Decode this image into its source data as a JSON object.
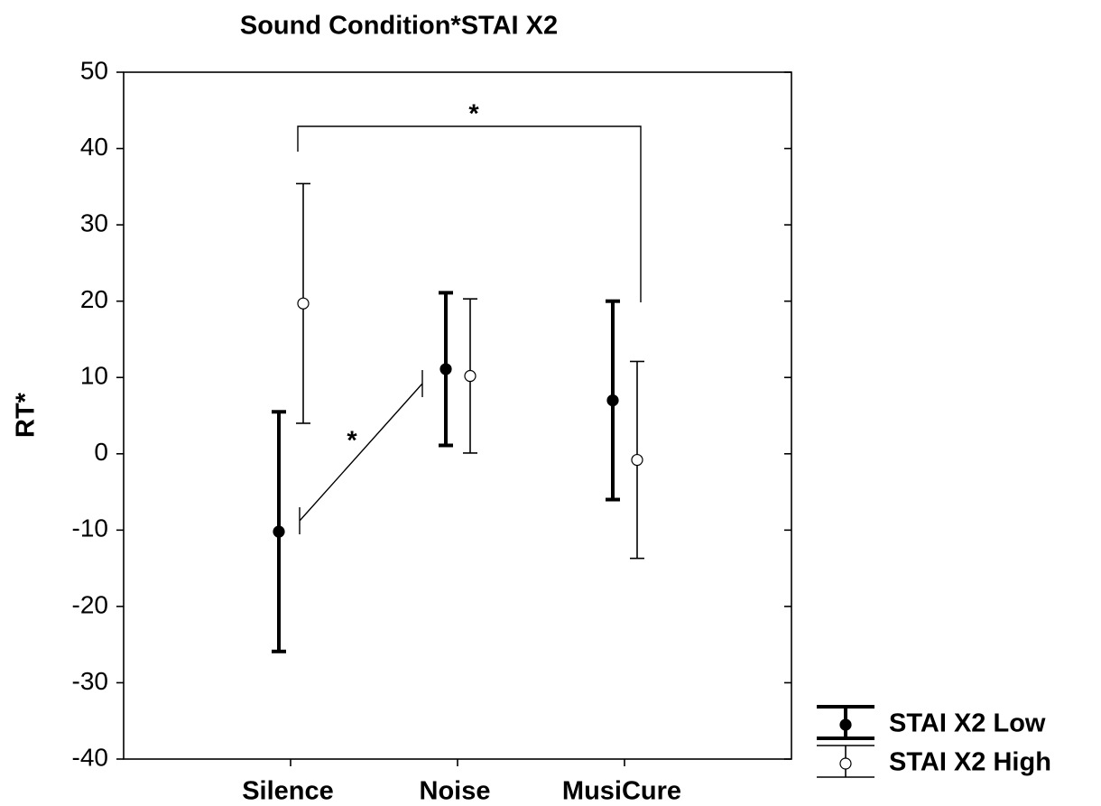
{
  "chart_data": {
    "type": "errorbar",
    "title": "Sound Condition*STAI X2",
    "y_label": "RT*",
    "categories": [
      "Silence",
      "Noise",
      "MusiCure"
    ],
    "series": [
      {
        "name": "STAI X2 Low",
        "color": "#000000",
        "marker_fill": "#000000",
        "line_width": 4,
        "values": [
          -10.2,
          11.1,
          7.0
        ],
        "errors": [
          15.7,
          10.0,
          13.0
        ]
      },
      {
        "name": "STAI X2 High",
        "color": "#000000",
        "marker_fill": "#ffffff",
        "line_width": 1.6,
        "values": [
          19.7,
          10.2,
          -0.8
        ],
        "errors": [
          15.7,
          10.1,
          12.9
        ]
      }
    ],
    "ylim": [
      -40,
      50
    ],
    "yticks": [
      -40,
      -30,
      -20,
      -10,
      0,
      10,
      20,
      30,
      40,
      50
    ],
    "annotations": [
      "*",
      "*"
    ],
    "legend": "bottom-right"
  }
}
